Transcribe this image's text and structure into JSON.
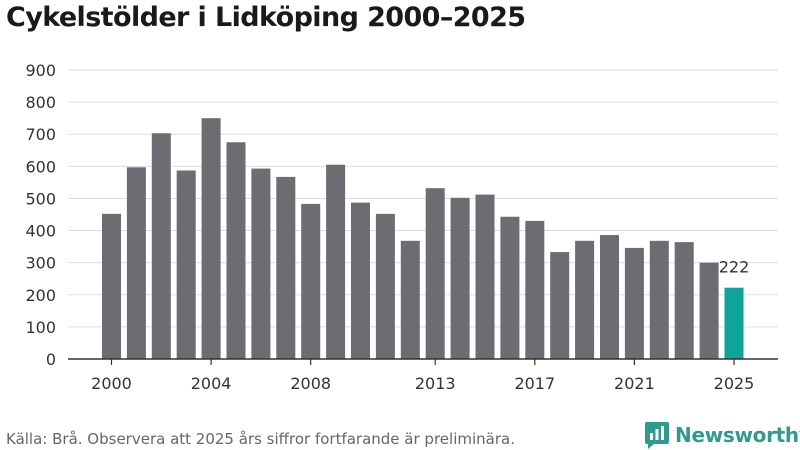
{
  "title": "Cykelstölder i Lidköping 2000–2025",
  "source_text": "Källa: Brå. Observera att 2025 års siffror fortfarande är preliminära.",
  "brand": {
    "name": "Newsworthy",
    "icon": "newsworthy-logo-icon"
  },
  "colors": {
    "bar": "#6d6c72",
    "highlight": "#0fa39a",
    "grid": "#dddddd",
    "axis": "#333333",
    "text": "#333333",
    "brand": "#2f9b8e"
  },
  "chart_data": {
    "type": "bar",
    "title": "Cykelstölder i Lidköping 2000–2025",
    "xlabel": "",
    "ylabel": "",
    "ylim": [
      0,
      900
    ],
    "yticks": [
      0,
      100,
      200,
      300,
      400,
      500,
      600,
      700,
      800,
      900
    ],
    "grid": true,
    "categories": [
      "2000",
      "2001",
      "2002",
      "2003",
      "2004",
      "2005",
      "2006",
      "2007",
      "2008",
      "2009",
      "2010",
      "2011",
      "2012",
      "2013",
      "2014",
      "2015",
      "2016",
      "2017",
      "2018",
      "2019",
      "2020",
      "2021",
      "2022",
      "2023",
      "2024",
      "2025"
    ],
    "xtick_labels": [
      "2000",
      "2004",
      "2008",
      "2013",
      "2017",
      "2021",
      "2025"
    ],
    "values": [
      452,
      597,
      703,
      587,
      750,
      675,
      593,
      567,
      483,
      605,
      487,
      452,
      368,
      532,
      502,
      512,
      443,
      430,
      333,
      368,
      386,
      346,
      368,
      364,
      300,
      222
    ],
    "highlight": "2025",
    "annotations": [
      {
        "category": "2025",
        "text": "222"
      }
    ]
  }
}
